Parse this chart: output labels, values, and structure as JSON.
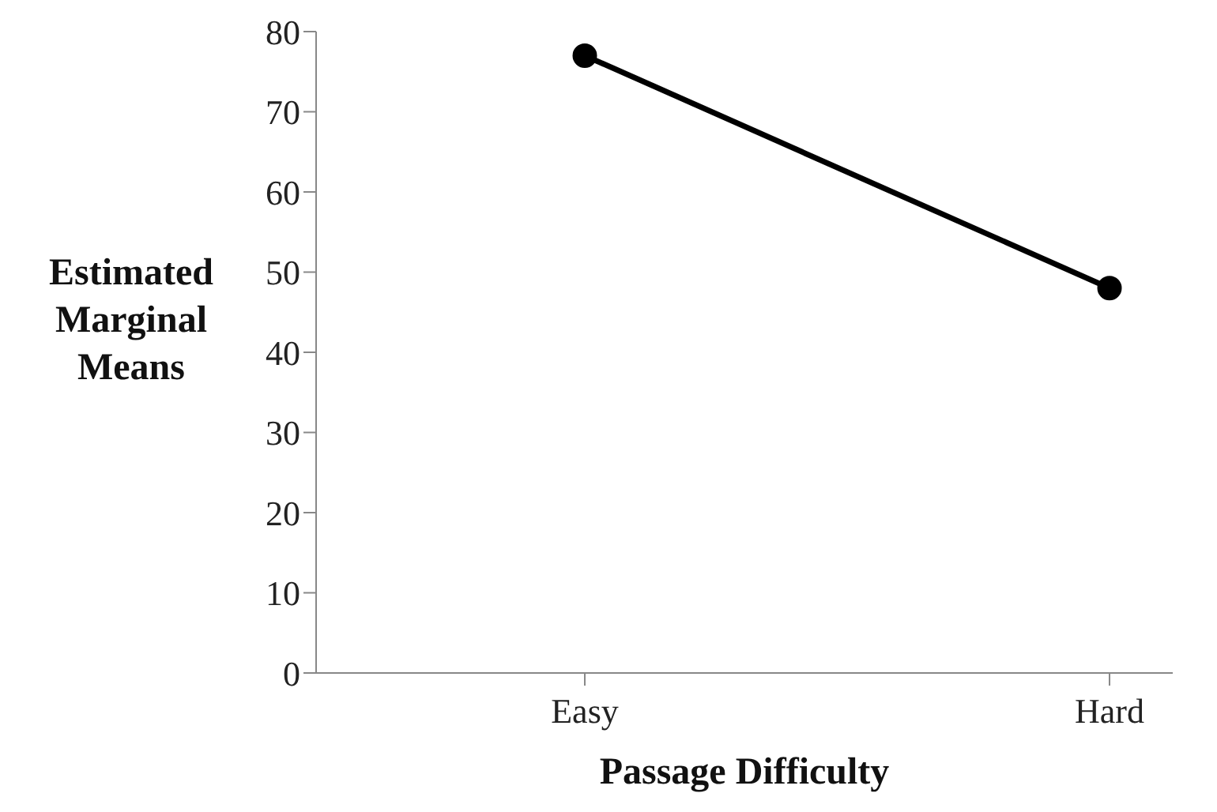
{
  "chart_data": {
    "type": "line",
    "xlabel": "Passage Difficulty",
    "ylabel": "Estimated Marginal Means",
    "categories": [
      "Easy",
      "Hard"
    ],
    "series": [
      {
        "color": "#000000",
        "values": [
          77,
          48
        ]
      }
    ],
    "ylim": [
      0,
      80
    ],
    "yticks": [
      0,
      10,
      20,
      30,
      40,
      50,
      60,
      70,
      80
    ],
    "grid": false,
    "legend": false,
    "marker": "circle",
    "line_style": "solid"
  }
}
